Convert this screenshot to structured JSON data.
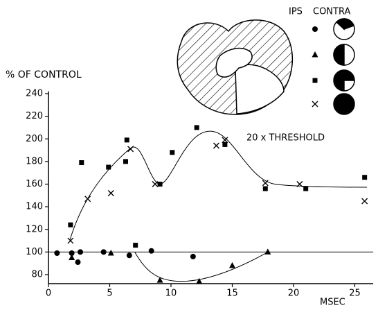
{
  "chart_data": {
    "type": "scatter",
    "ylabel": "% OF CONTROL",
    "xlabel": "MSEC",
    "annotation": "20 x THRESHOLD",
    "legend_headers": [
      "IPS",
      "CONTRA"
    ],
    "xlim": [
      0,
      26.5
    ],
    "xticks": [
      0,
      5,
      10,
      15,
      20,
      25
    ],
    "ylim": [
      72,
      242
    ],
    "yticks": [
      80,
      100,
      120,
      140,
      160,
      180,
      200,
      220,
      240
    ],
    "reference_line": 100,
    "series": [
      {
        "marker": "circle",
        "color": "#000000",
        "x": [
          0.7,
          1.9,
          2.4,
          2.6,
          4.5,
          6.6,
          8.4,
          11.8
        ],
        "values": [
          99,
          99,
          91,
          100,
          100,
          97,
          101,
          96
        ]
      },
      {
        "marker": "triangle",
        "color": "#000000",
        "x": [
          1.9,
          5.1,
          9.1,
          12.3,
          15.0,
          17.9
        ],
        "values": [
          95,
          99,
          75,
          74,
          88,
          100
        ]
      },
      {
        "marker": "square",
        "color": "#000000",
        "x": [
          1.8,
          2.7,
          4.9,
          6.4,
          6.3,
          7.1,
          9.1,
          10.1,
          12.1,
          14.4,
          17.7,
          21.0,
          25.8
        ],
        "values": [
          124,
          179,
          175,
          199,
          180,
          106,
          160,
          188,
          210,
          195,
          156,
          156,
          166
        ]
      },
      {
        "marker": "x",
        "color": "#000000",
        "x": [
          1.8,
          3.2,
          5.1,
          6.7,
          8.7,
          13.7,
          14.4,
          17.7,
          20.5,
          25.8
        ],
        "values": [
          110,
          147,
          152,
          191,
          160,
          194,
          199,
          161,
          160,
          145
        ]
      }
    ]
  }
}
